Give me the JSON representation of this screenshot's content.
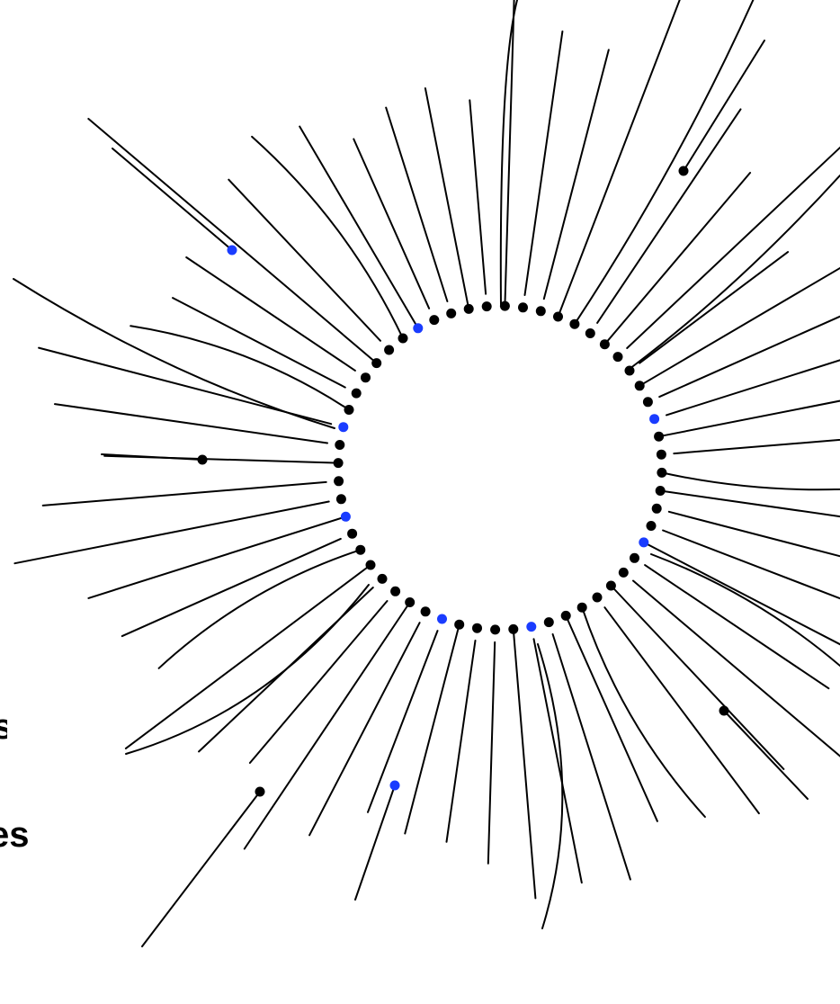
{
  "visual": {
    "ray_color": "#000000",
    "dot_color": "#000000",
    "accent_dot_color": "#1a3cff",
    "background": "#ffffff"
  },
  "labels": {
    "cropped_text_1": "s",
    "cropped_text_2": "es"
  }
}
